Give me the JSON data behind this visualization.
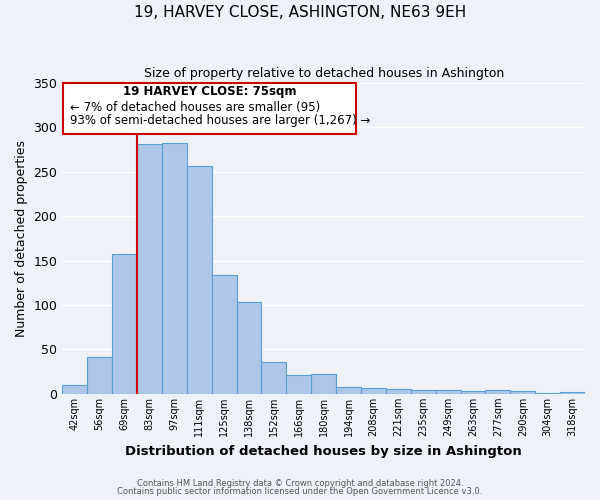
{
  "title": "19, HARVEY CLOSE, ASHINGTON, NE63 9EH",
  "subtitle": "Size of property relative to detached houses in Ashington",
  "xlabel": "Distribution of detached houses by size in Ashington",
  "ylabel": "Number of detached properties",
  "bar_labels": [
    "42sqm",
    "56sqm",
    "69sqm",
    "83sqm",
    "97sqm",
    "111sqm",
    "125sqm",
    "138sqm",
    "152sqm",
    "166sqm",
    "180sqm",
    "194sqm",
    "208sqm",
    "221sqm",
    "235sqm",
    "249sqm",
    "263sqm",
    "277sqm",
    "290sqm",
    "304sqm",
    "318sqm"
  ],
  "bar_values": [
    10,
    42,
    158,
    281,
    282,
    257,
    134,
    103,
    36,
    21,
    22,
    8,
    7,
    6,
    4,
    4,
    3,
    4,
    3,
    1,
    2
  ],
  "bar_color": "#aec6e8",
  "bar_edge_color": "#5a9fd4",
  "ylim": [
    0,
    350
  ],
  "yticks": [
    0,
    50,
    100,
    150,
    200,
    250,
    300,
    350
  ],
  "property_line_x": 2.5,
  "property_line_color": "#cc0000",
  "annotation_title": "19 HARVEY CLOSE: 75sqm",
  "annotation_line1": "← 7% of detached houses are smaller (95)",
  "annotation_line2": "93% of semi-detached houses are larger (1,267) →",
  "annotation_box_color": "#cc0000",
  "footer_line1": "Contains HM Land Registry data © Crown copyright and database right 2024.",
  "footer_line2": "Contains public sector information licensed under the Open Government Licence v3.0.",
  "bg_color": "#eef2f8",
  "plot_bg_color": "#eef2f8",
  "grid_color": "#ffffff"
}
